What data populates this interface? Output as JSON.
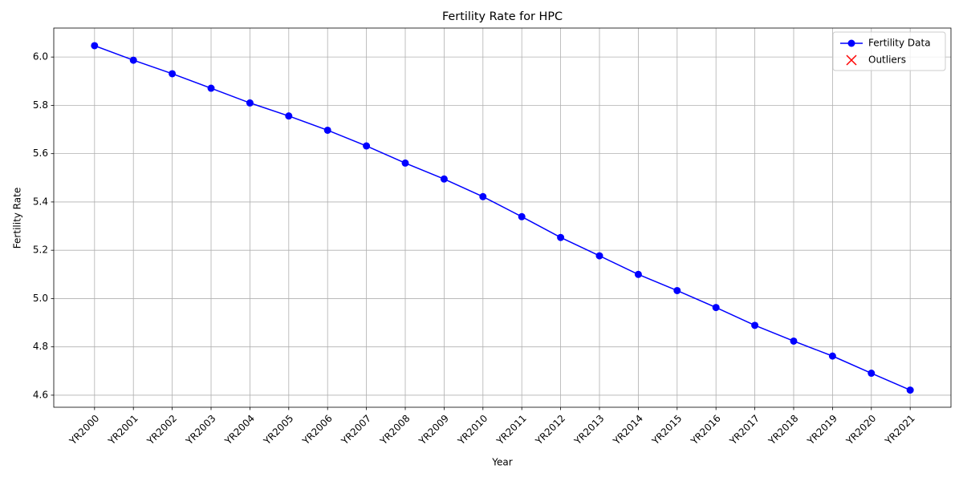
{
  "chart_data": {
    "type": "line",
    "title": "Fertility Rate for HPC",
    "xlabel": "Year",
    "ylabel": "Fertility Rate",
    "categories": [
      "YR2000",
      "YR2001",
      "YR2002",
      "YR2003",
      "YR2004",
      "YR2005",
      "YR2006",
      "YR2007",
      "YR2008",
      "YR2009",
      "YR2010",
      "YR2011",
      "YR2012",
      "YR2013",
      "YR2014",
      "YR2015",
      "YR2016",
      "YR2017",
      "YR2018",
      "YR2019",
      "YR2020",
      "YR2021"
    ],
    "series": [
      {
        "name": "Fertility Data",
        "color": "#0000ff",
        "marker": "o",
        "values": [
          6.047,
          5.987,
          5.931,
          5.871,
          5.81,
          5.756,
          5.697,
          5.632,
          5.561,
          5.495,
          5.422,
          5.339,
          5.253,
          5.177,
          5.1,
          5.033,
          4.963,
          4.889,
          4.824,
          4.762,
          4.691,
          4.621
        ]
      },
      {
        "name": "Outliers",
        "color": "#ff0000",
        "marker": "x",
        "values": [
          null,
          null,
          null,
          null,
          null,
          null,
          null,
          null,
          null,
          null,
          null,
          null,
          null,
          null,
          null,
          null,
          null,
          null,
          null,
          null,
          null,
          null
        ]
      }
    ],
    "ylim": [
      4.55,
      6.12
    ],
    "yticks": [
      {
        "value": 4.6,
        "label": "4.6"
      },
      {
        "value": 4.8,
        "label": "4.8"
      },
      {
        "value": 5.0,
        "label": "5.0"
      },
      {
        "value": 5.2,
        "label": "5.2"
      },
      {
        "value": 5.4,
        "label": "5.4"
      },
      {
        "value": 5.6,
        "label": "5.6"
      },
      {
        "value": 5.8,
        "label": "5.8"
      },
      {
        "value": 6.0,
        "label": "6.0"
      }
    ],
    "grid": true,
    "legend": "upper right"
  }
}
